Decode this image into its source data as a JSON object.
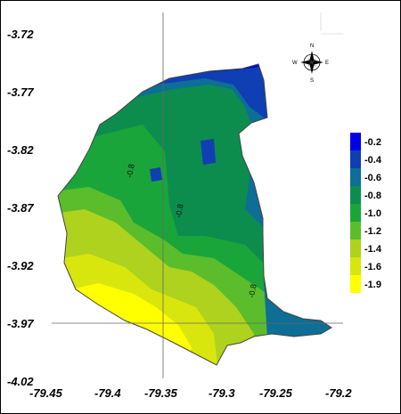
{
  "map": {
    "y_ticks": [
      "-3.72",
      "-3.77",
      "-3.82",
      "-3.87",
      "-3.92",
      "-3.97",
      "-4.02"
    ],
    "x_ticks": [
      "-79.45",
      "-79.4",
      "-79.35",
      "-79.3",
      "-79.25",
      "-79.2"
    ],
    "legend": {
      "labels": [
        "-0.2",
        "-0.4",
        "-0.6",
        "-0.8",
        "-1.0",
        "-1.2",
        "-1.4",
        "-1.6",
        "-1.9"
      ],
      "colors": [
        "#0000e6",
        "#0f3fb3",
        "#0d6e96",
        "#0c8d4e",
        "#1aa53a",
        "#5bbd2b",
        "#aed21d",
        "#d9e60e",
        "#ffff00"
      ]
    },
    "contour_labels": [
      "-0.8",
      "-0.8",
      "-0.8"
    ],
    "compass": {
      "n": "N",
      "s": "S",
      "e": "E",
      "w": "W"
    }
  }
}
